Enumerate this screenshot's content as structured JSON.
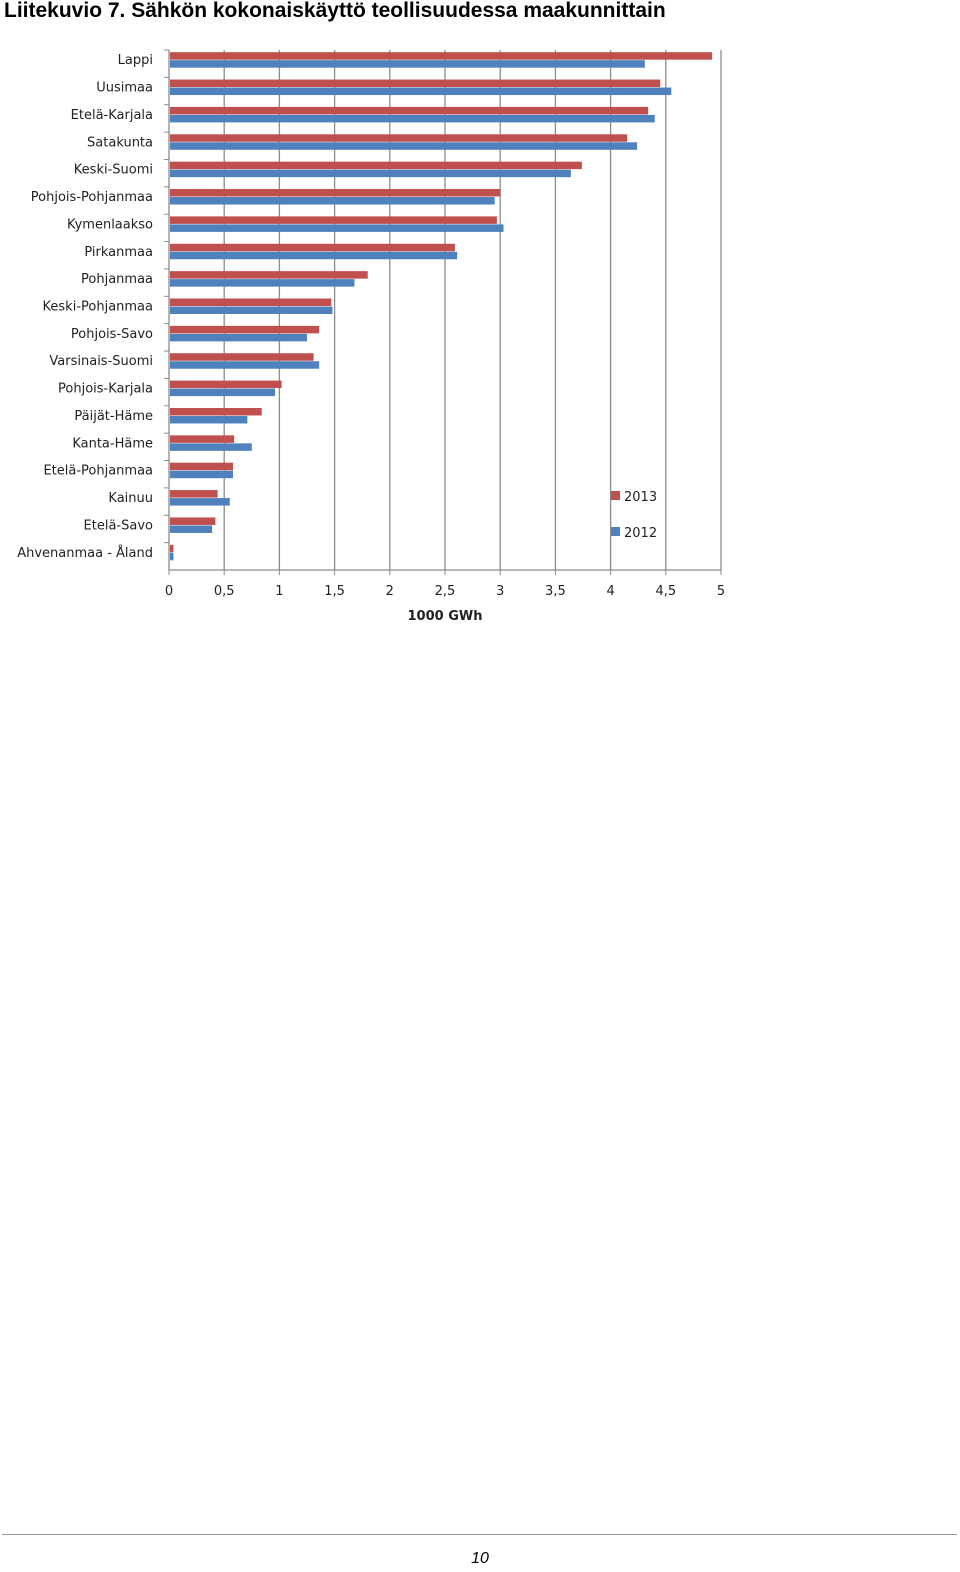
{
  "page": {
    "title": "Liitekuvio 7. Sähkön kokonaiskäyttö teollisuudessa maakunnittain",
    "page_number": "10"
  },
  "chart_data": {
    "type": "bar",
    "orientation": "horizontal",
    "title": "",
    "xlabel": "1000 GWh",
    "ylabel": "",
    "xlim": [
      0,
      5
    ],
    "xticks": [
      {
        "value": 0,
        "label": "0"
      },
      {
        "value": 0.5,
        "label": "0,5"
      },
      {
        "value": 1,
        "label": "1"
      },
      {
        "value": 1.5,
        "label": "1,5"
      },
      {
        "value": 2,
        "label": "2"
      },
      {
        "value": 2.5,
        "label": "2,5"
      },
      {
        "value": 3,
        "label": "3"
      },
      {
        "value": 3.5,
        "label": "3,5"
      },
      {
        "value": 4,
        "label": "4"
      },
      {
        "value": 4.5,
        "label": "4,5"
      },
      {
        "value": 5,
        "label": "5"
      }
    ],
    "grid": true,
    "legend_position": "right",
    "categories": [
      "Lappi",
      "Uusimaa",
      "Etelä-Karjala",
      "Satakunta",
      "Keski-Suomi",
      "Pohjois-Pohjanmaa",
      "Kymenlaakso",
      "Pirkanmaa",
      "Pohjanmaa",
      "Keski-Pohjanmaa",
      "Pohjois-Savo",
      "Varsinais-Suomi",
      "Pohjois-Karjala",
      "Päijät-Häme",
      "Kanta-Häme",
      "Etelä-Pohjanmaa",
      "Kainuu",
      "Etelä-Savo",
      "Ahvenanmaa - Åland"
    ],
    "series": [
      {
        "name": "2013",
        "color": "#c0504d",
        "values": [
          4.92,
          4.45,
          4.34,
          4.15,
          3.74,
          3.0,
          2.97,
          2.59,
          1.8,
          1.47,
          1.36,
          1.31,
          1.02,
          0.84,
          0.59,
          0.58,
          0.44,
          0.42,
          0.04
        ]
      },
      {
        "name": "2012",
        "color": "#4f81bd",
        "values": [
          4.31,
          4.55,
          4.4,
          4.24,
          3.64,
          2.95,
          3.03,
          2.61,
          1.68,
          1.48,
          1.25,
          1.36,
          0.96,
          0.71,
          0.75,
          0.58,
          0.55,
          0.39,
          0.04
        ]
      }
    ]
  }
}
